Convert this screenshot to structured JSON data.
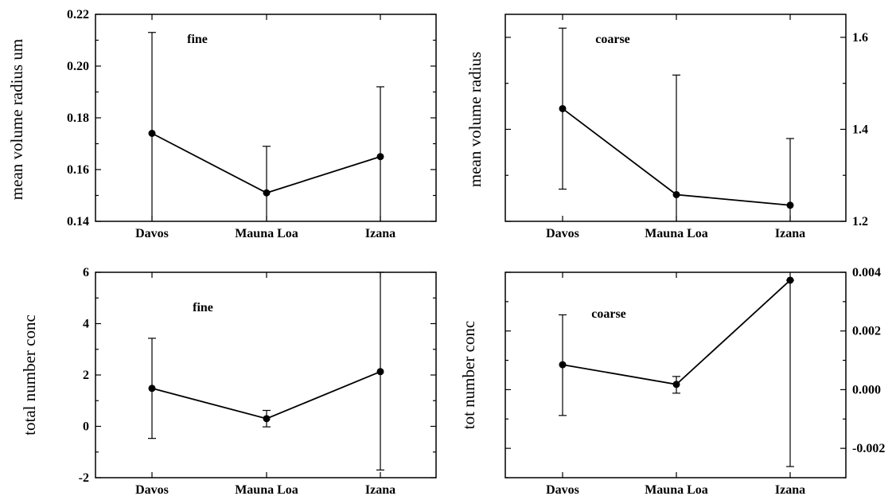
{
  "chart_data": [
    {
      "type": "line",
      "categories": [
        "Davos",
        "Mauna Loa",
        "Izana"
      ],
      "values": [
        0.174,
        0.151,
        0.165
      ],
      "error_low": [
        0.1,
        0.133,
        0.138
      ],
      "error_high": [
        0.213,
        0.169,
        0.192
      ],
      "ylabel": "mean volume radius  um",
      "annotation": "fine",
      "ylim": [
        0.14,
        0.22
      ],
      "yticks": [
        0.14,
        0.16,
        0.18,
        0.2,
        0.22
      ],
      "ytick_labels": [
        "0.14",
        "0.16",
        "0.18",
        "0.20",
        "0.22"
      ],
      "ytick_labels_side": "left"
    },
    {
      "type": "line",
      "categories": [
        "Davos",
        "Mauna Loa",
        "Izana"
      ],
      "values": [
        1.445,
        1.258,
        1.235
      ],
      "error_low": [
        1.27,
        1.0,
        1.09
      ],
      "error_high": [
        1.62,
        1.518,
        1.38
      ],
      "ylabel": "mean volume radius",
      "annotation": "coarse",
      "ylim": [
        1.2,
        1.65
      ],
      "yticks": [
        1.2,
        1.4,
        1.6
      ],
      "ytick_labels": [
        "1.2",
        "1.4",
        "1.6"
      ],
      "ytick_labels_side": "right"
    },
    {
      "type": "line",
      "categories": [
        "Davos",
        "Mauna Loa",
        "Izana"
      ],
      "values": [
        1.48,
        0.3,
        2.13
      ],
      "error_low": [
        -0.47,
        -0.02,
        -1.7
      ],
      "error_high": [
        3.43,
        0.62,
        6.0
      ],
      "ylabel": "total number conc",
      "annotation": "fine",
      "ylim": [
        -2,
        6
      ],
      "yticks": [
        -2,
        0,
        2,
        4,
        6
      ],
      "ytick_labels": [
        "-2",
        "0",
        "2",
        "4",
        "6"
      ],
      "ytick_labels_side": "left"
    },
    {
      "type": "line",
      "categories": [
        "Davos",
        "Mauna Loa",
        "Izana"
      ],
      "values": [
        0.00085,
        0.00018,
        0.00373
      ],
      "error_low": [
        -0.00088,
        -0.00012,
        -0.00262
      ],
      "error_high": [
        0.00255,
        0.00045,
        0.00373
      ],
      "ylabel": "tot number conc",
      "annotation": "coarse",
      "ylim": [
        -0.003,
        0.004
      ],
      "yticks": [
        -0.002,
        0.0,
        0.002,
        0.004
      ],
      "ytick_labels": [
        "-0.002",
        "0.000",
        "0.002",
        "0.004"
      ],
      "ytick_labels_side": "right"
    }
  ]
}
